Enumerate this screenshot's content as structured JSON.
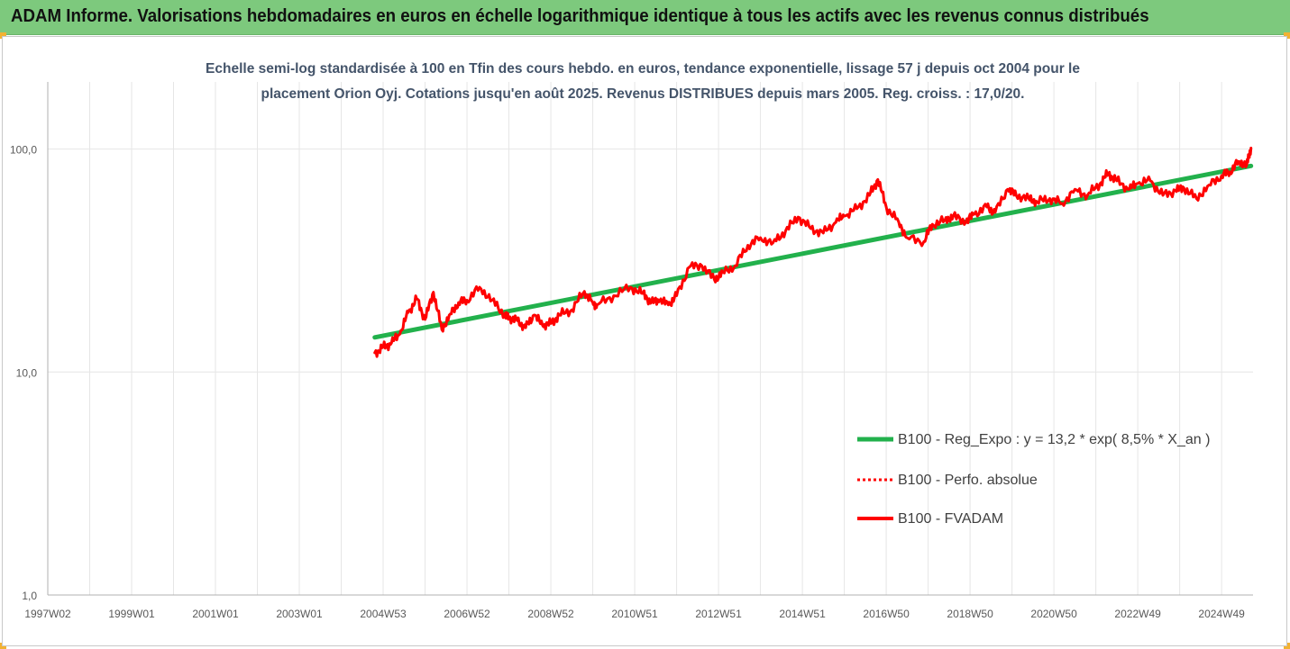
{
  "header": {
    "title": "ADAM Informe. Valorisations hebdomadaires en euros en échelle logarithmique identique à tous les actifs avec les revenus connus distribués",
    "background": "#7dc97d"
  },
  "chart_data": {
    "type": "line",
    "subtitle_lines": [
      "Echelle semi-log standardisée à 100 en Tfin des cours hebdo. en euros, tendance exponentielle, lissage 57 j depuis oct 2004 pour le",
      "placement Orion Oyj. Cotations jusqu'en août 2025. Revenus DISTRIBUES depuis mars 2005. Reg. croiss. : 17,0/20."
    ],
    "y_scale": "log",
    "ylim": [
      1,
      200
    ],
    "y_ticks": [
      {
        "value": 1,
        "label": "1,0"
      },
      {
        "value": 10,
        "label": "10,0"
      },
      {
        "value": 100,
        "label": "100,0"
      }
    ],
    "xlim": [
      1997.0,
      2025.75
    ],
    "x_ticks": [
      {
        "value": 1997.0,
        "label": "1997W02"
      },
      {
        "value": 1999.0,
        "label": "1999W01"
      },
      {
        "value": 2001.0,
        "label": "2001W01"
      },
      {
        "value": 2003.0,
        "label": "2003W01"
      },
      {
        "value": 2005.0,
        "label": "2004W53"
      },
      {
        "value": 2007.0,
        "label": "2006W52"
      },
      {
        "value": 2009.0,
        "label": "2008W52"
      },
      {
        "value": 2011.0,
        "label": "2010W51"
      },
      {
        "value": 2013.0,
        "label": "2012W51"
      },
      {
        "value": 2015.0,
        "label": "2014W51"
      },
      {
        "value": 2017.0,
        "label": "2016W50"
      },
      {
        "value": 2019.0,
        "label": "2018W50"
      },
      {
        "value": 2021.0,
        "label": "2020W50"
      },
      {
        "value": 2023.0,
        "label": "2022W49"
      },
      {
        "value": 2025.0,
        "label": "2024W49"
      }
    ],
    "grid": "vertical",
    "legend_position": "right",
    "series": [
      {
        "name": "B100 - Reg_Expo : y = 13,2 * exp( 8,5% *  X_an )",
        "color": "#22b14c",
        "style": "solid-thick",
        "x": [
          2004.8,
          2025.7
        ],
        "y": [
          14.3,
          84.0
        ]
      },
      {
        "name": "B100 - Perfo. absolue",
        "color": "#ff0000",
        "style": "dotted",
        "x": [],
        "y": []
      },
      {
        "name": "B100 - FVADAM",
        "color": "#ff0000",
        "style": "solid",
        "x": [
          2004.8,
          2005.0,
          2005.2,
          2005.4,
          2005.6,
          2005.8,
          2006.0,
          2006.2,
          2006.4,
          2006.6,
          2006.8,
          2007.0,
          2007.3,
          2007.6,
          2007.9,
          2008.0,
          2008.2,
          2008.4,
          2008.6,
          2008.8,
          2009.0,
          2009.2,
          2009.5,
          2009.8,
          2010.0,
          2010.1,
          2010.5,
          2010.9,
          2011.2,
          2011.4,
          2011.6,
          2011.8,
          2012.0,
          2012.3,
          2012.6,
          2012.9,
          2013.1,
          2013.4,
          2013.7,
          2014.0,
          2014.3,
          2014.6,
          2014.9,
          2015.2,
          2015.5,
          2015.8,
          2016.0,
          2016.3,
          2016.6,
          2016.8,
          2017.0,
          2017.3,
          2017.5,
          2017.9,
          2018.1,
          2018.4,
          2018.6,
          2018.9,
          2019.1,
          2019.4,
          2019.6,
          2019.9,
          2020.1,
          2020.4,
          2020.6,
          2020.9,
          2021.2,
          2021.5,
          2021.8,
          2022.1,
          2022.3,
          2022.5,
          2022.8,
          2023.0,
          2023.3,
          2023.6,
          2023.9,
          2024.1,
          2024.4,
          2024.7,
          2025.0,
          2025.2,
          2025.4,
          2025.6,
          2025.7
        ],
        "y": [
          12.2,
          12.9,
          13.5,
          14.8,
          18.5,
          21.3,
          17.2,
          22.8,
          15.5,
          18.2,
          20.5,
          21.0,
          24.0,
          21.0,
          18.0,
          17.5,
          17.0,
          15.8,
          18.0,
          16.2,
          16.5,
          18.0,
          19.0,
          23.0,
          20.5,
          20.0,
          22.0,
          24.0,
          22.5,
          20.5,
          21.0,
          20.0,
          22.0,
          29.5,
          30.0,
          26.0,
          28.0,
          30.0,
          37.0,
          40.0,
          38.0,
          43.0,
          49.5,
          44.0,
          42.0,
          47.0,
          50.0,
          54.0,
          62.0,
          73.0,
          55.0,
          47.0,
          40.0,
          38.5,
          46.0,
          48.0,
          50.0,
          47.0,
          51.0,
          55.0,
          52.0,
          66.0,
          62.0,
          60.0,
          58.0,
          60.0,
          57.0,
          66.0,
          62.0,
          70.0,
          78.0,
          72.0,
          66.0,
          70.0,
          72.0,
          62.0,
          65.0,
          67.0,
          60.0,
          69.0,
          76.0,
          79.0,
          88.0,
          85.0,
          101.0
        ]
      }
    ]
  }
}
